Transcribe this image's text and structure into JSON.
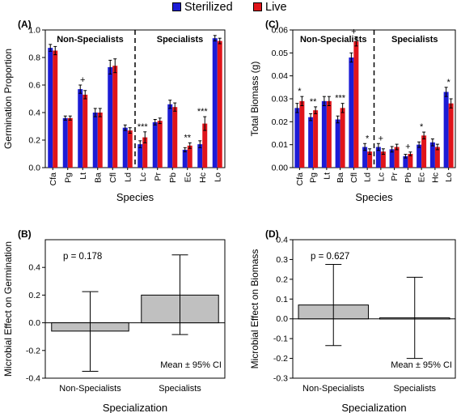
{
  "legend": [
    {
      "name": "Sterilized",
      "color": "#1c1cd6"
    },
    {
      "name": "Live",
      "color": "#e0151b"
    }
  ],
  "chart_data": [
    {
      "panel_label": "(A)",
      "type": "bar",
      "xlabel": "Species",
      "ylabel": "Germination Proportion",
      "ylim": [
        0,
        1.0
      ],
      "yticks": [
        "0.0",
        "0.2",
        "0.4",
        "0.6",
        "0.8",
        "1.0"
      ],
      "categories": [
        "Cfa",
        "Pg",
        "Lt",
        "Ba",
        "Cfl",
        "Ld",
        "Lc",
        "Pr",
        "Pb",
        "Ec",
        "Hc",
        "Lo"
      ],
      "series": [
        {
          "name": "Sterilized",
          "values": [
            0.87,
            0.36,
            0.57,
            0.4,
            0.73,
            0.29,
            0.17,
            0.33,
            0.46,
            0.13,
            0.17,
            0.94
          ],
          "errors": [
            0.025,
            0.015,
            0.03,
            0.03,
            0.05,
            0.02,
            0.025,
            0.02,
            0.03,
            0.015,
            0.025,
            0.02
          ]
        },
        {
          "name": "Live",
          "values": [
            0.85,
            0.36,
            0.53,
            0.4,
            0.74,
            0.27,
            0.22,
            0.34,
            0.44,
            0.16,
            0.32,
            0.92
          ],
          "errors": [
            0.03,
            0.015,
            0.03,
            0.03,
            0.05,
            0.02,
            0.04,
            0.02,
            0.03,
            0.02,
            0.05,
            0.02
          ]
        }
      ],
      "significance": [
        "",
        "",
        "+",
        "",
        "",
        "",
        "***",
        "",
        "",
        "**",
        "***",
        ""
      ],
      "group_labels": [
        "Non-Specialists",
        "Specialists"
      ]
    },
    {
      "panel_label": "(C)",
      "type": "bar",
      "xlabel": "Species",
      "ylabel": "Total Biomass (g)",
      "ylim": [
        0,
        0.06
      ],
      "yticks": [
        "0.00",
        "0.01",
        "0.02",
        "0.03",
        "0.04",
        "0.05",
        "0.06"
      ],
      "categories": [
        "Cfa",
        "Pg",
        "Lt",
        "Ba",
        "Cfl",
        "Ld",
        "Lc",
        "Pr",
        "Pb",
        "Ec",
        "Hc",
        "Lo"
      ],
      "series": [
        {
          "name": "Sterilized",
          "values": [
            0.026,
            0.022,
            0.029,
            0.021,
            0.048,
            0.009,
            0.009,
            0.008,
            0.005,
            0.01,
            0.011,
            0.033
          ],
          "errors": [
            0.002,
            0.0015,
            0.002,
            0.0015,
            0.002,
            0.0015,
            0.0015,
            0.0012,
            0.0008,
            0.0012,
            0.0015,
            0.002
          ]
        },
        {
          "name": "Live",
          "values": [
            0.029,
            0.025,
            0.029,
            0.026,
            0.055,
            0.007,
            0.007,
            0.009,
            0.006,
            0.014,
            0.009,
            0.028
          ],
          "errors": [
            0.002,
            0.0015,
            0.002,
            0.002,
            0.002,
            0.0012,
            0.0012,
            0.0012,
            0.0008,
            0.0015,
            0.0012,
            0.002
          ]
        }
      ],
      "significance": [
        "*",
        "**",
        "",
        "***",
        "+",
        "*",
        "+",
        "",
        "+",
        "*",
        "",
        "*"
      ],
      "group_labels": [
        "Non-Specialists",
        "Specialists"
      ]
    },
    {
      "panel_label": "(B)",
      "type": "bar",
      "xlabel": "Specialization",
      "ylabel": "Microbial Effect on Germination",
      "ylim": [
        -0.4,
        0.6
      ],
      "yticks": [
        "-0.4",
        "-0.2",
        "0.0",
        "0.2",
        "0.4"
      ],
      "categories": [
        "Non-Specialists",
        "Specialists"
      ],
      "values": [
        -0.06,
        0.2
      ],
      "ci_low": [
        -0.35,
        -0.085
      ],
      "ci_high": [
        0.225,
        0.49
      ],
      "p_text": "p = 0.178",
      "note": "Mean ± 95% CI"
    },
    {
      "panel_label": "(D)",
      "type": "bar",
      "xlabel": "Specialization",
      "ylabel": "Microbial Effect on Biomass",
      "ylim": [
        -0.3,
        0.4
      ],
      "yticks": [
        "-0.3",
        "-0.2",
        "-0.1",
        "0.0",
        "0.1",
        "0.2",
        "0.3",
        "0.4"
      ],
      "categories": [
        "Non-Specialists",
        "Specialists"
      ],
      "values": [
        0.07,
        0.005
      ],
      "ci_low": [
        -0.135,
        -0.2
      ],
      "ci_high": [
        0.275,
        0.21
      ],
      "p_text": "p = 0.627",
      "note": "Mean ± 95% CI"
    }
  ]
}
